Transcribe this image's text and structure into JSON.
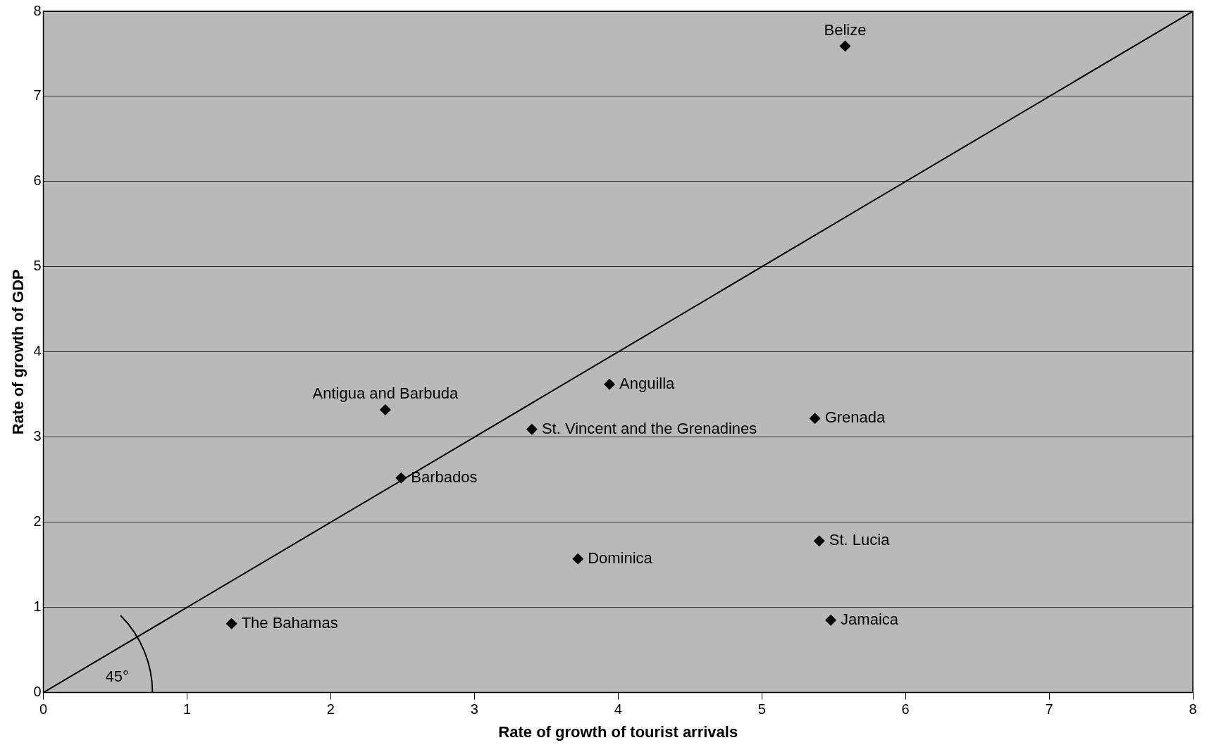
{
  "chart_data": {
    "type": "scatter",
    "xlabel": "Rate of growth of tourist arrivals",
    "ylabel": "Rate of growth of GDP",
    "xlim": [
      0,
      8
    ],
    "ylim": [
      0,
      8
    ],
    "xticks": [
      0,
      1,
      2,
      3,
      4,
      5,
      6,
      7,
      8
    ],
    "yticks": [
      0,
      1,
      2,
      3,
      4,
      5,
      6,
      7,
      8
    ],
    "grid": "y",
    "marker": "diamond",
    "legend": false,
    "series": [
      {
        "color": "#000000",
        "x": [
          5.58,
          2.38,
          3.94,
          3.4,
          2.49,
          5.37,
          5.4,
          3.72,
          5.48,
          1.31
        ],
        "values": [
          7.59,
          3.32,
          3.62,
          3.09,
          2.52,
          3.22,
          1.78,
          1.57,
          0.85,
          0.81
        ]
      },
      {
        "type": "line",
        "color": "#000000",
        "marker": "none",
        "x": [
          0,
          8
        ],
        "values": [
          0,
          8
        ]
      }
    ],
    "annotations": [
      {
        "text": "Belize",
        "x": 5.58,
        "y": 7.59
      },
      {
        "text": "Antigua and Barbuda",
        "x": 2.38,
        "y": 3.32
      },
      {
        "text": "Anguilla",
        "x": 3.94,
        "y": 3.62
      },
      {
        "text": "St. Vincent and the Grenadines",
        "x": 3.4,
        "y": 3.09
      },
      {
        "text": "Barbados",
        "x": 2.49,
        "y": 2.52
      },
      {
        "text": "Grenada",
        "x": 5.37,
        "y": 3.22
      },
      {
        "text": "St. Lucia",
        "x": 5.4,
        "y": 1.78
      },
      {
        "text": "Dominica",
        "x": 3.72,
        "y": 1.57
      },
      {
        "text": "Jamaica",
        "x": 5.48,
        "y": 0.85
      },
      {
        "text": "The Bahamas",
        "x": 1.31,
        "y": 0.81
      },
      "45°"
    ]
  }
}
